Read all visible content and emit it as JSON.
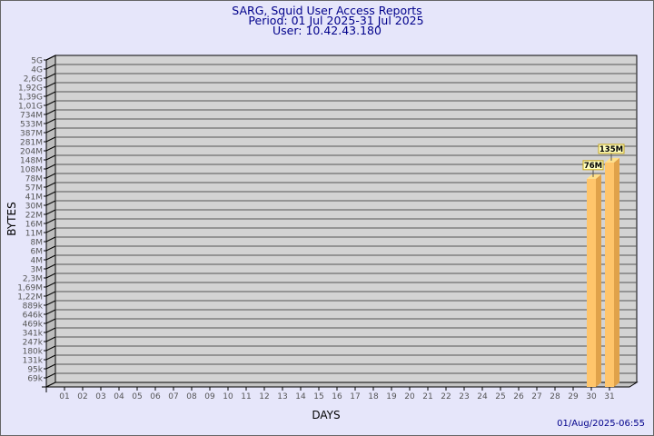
{
  "header": {
    "title": "SARG, Squid User Access Reports",
    "period": "Period: 01 Jul 2025-31 Jul 2025",
    "user": "User: 10.42.43.180"
  },
  "footer": {
    "timestamp": "01/Aug/2025-06:55"
  },
  "colors": {
    "background": "#e6e6fa",
    "plot": "#d3d3d3",
    "bar_front": "#ffc56b",
    "bar_side": "#e0a24a",
    "bar_top": "#ffe08a",
    "label_box": "#ffffc0",
    "title": "#00008b"
  },
  "chart_data": {
    "type": "bar",
    "xlabel": "DAYS",
    "ylabel": "BYTES",
    "y_scale": "log-like (labeled ticks)",
    "y_ticks": [
      "5G",
      "4G",
      "2,6G",
      "1,92G",
      "1,39G",
      "1,01G",
      "734M",
      "533M",
      "387M",
      "281M",
      "204M",
      "148M",
      "108M",
      "78M",
      "57M",
      "41M",
      "30M",
      "22M",
      "16M",
      "11M",
      "8M",
      "6M",
      "4M",
      "3M",
      "2,3M",
      "1,69M",
      "1,22M",
      "889k",
      "646k",
      "469k",
      "341k",
      "247k",
      "180k",
      "131k",
      "95k",
      "69k"
    ],
    "categories": [
      "01",
      "02",
      "03",
      "04",
      "05",
      "06",
      "07",
      "08",
      "09",
      "10",
      "11",
      "12",
      "13",
      "14",
      "15",
      "16",
      "17",
      "18",
      "19",
      "20",
      "21",
      "22",
      "23",
      "24",
      "25",
      "26",
      "27",
      "28",
      "29",
      "30",
      "31"
    ],
    "bars": [
      {
        "day": "30",
        "value": 76000000,
        "label": "76M"
      },
      {
        "day": "31",
        "value": 135000000,
        "label": "135M"
      }
    ],
    "grid": true,
    "style": "3d"
  }
}
